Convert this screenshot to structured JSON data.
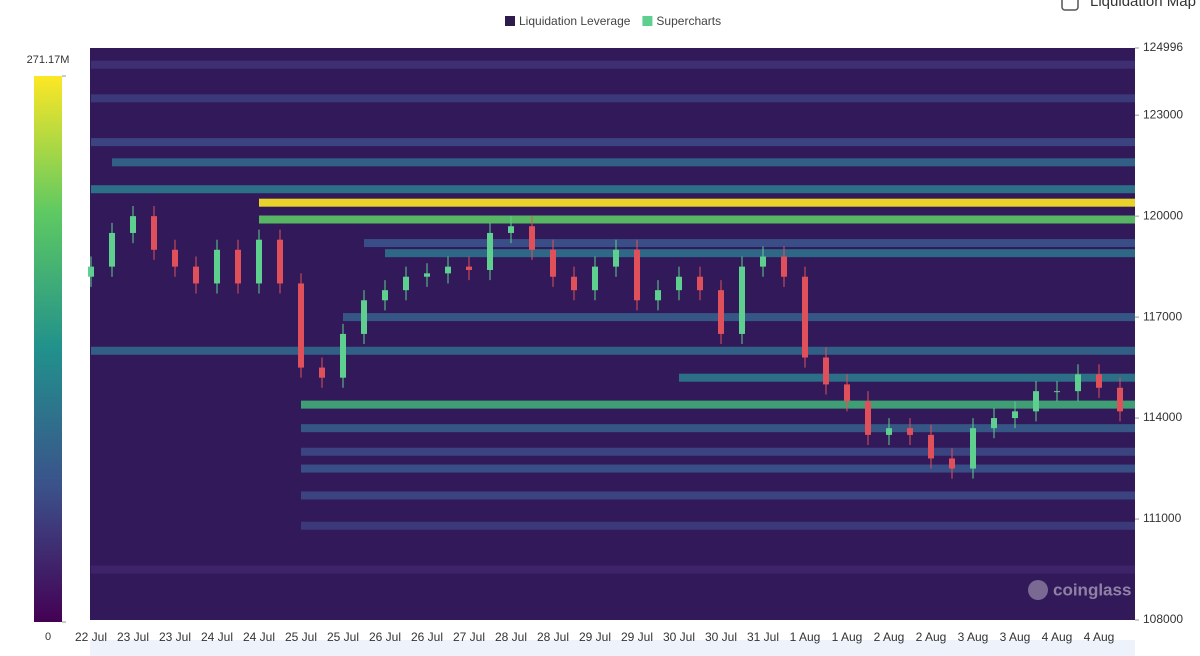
{
  "chart_data": {
    "type": "heatmap",
    "toggle_label": "Liquidation Map",
    "legend": [
      {
        "name": "Liquidation Leverage",
        "color": "#2d1b4e"
      },
      {
        "name": "Supercharts",
        "color": "#5fcf8f"
      }
    ],
    "categories": [
      "22 Jul",
      "23 Jul",
      "23 Jul",
      "24 Jul",
      "24 Jul",
      "25 Jul",
      "25 Jul",
      "26 Jul",
      "26 Jul",
      "27 Jul",
      "28 Jul",
      "28 Jul",
      "29 Jul",
      "29 Jul",
      "30 Jul",
      "30 Jul",
      "31 Jul",
      "1 Aug",
      "1 Aug",
      "2 Aug",
      "2 Aug",
      "3 Aug",
      "3 Aug",
      "4 Aug",
      "4 Aug"
    ],
    "ylim": [
      108000,
      124996
    ],
    "yticks": [
      108000,
      111000,
      114000,
      117000,
      120000,
      123000,
      124996
    ],
    "colorbar_lim": [
      0,
      271.17
    ],
    "colorbar_ticks": [
      0,
      {
        "value": 271.17,
        "label": "271.17M"
      }
    ],
    "bands": [
      {
        "price": 124500,
        "value": 40,
        "start": 0
      },
      {
        "price": 123500,
        "value": 50,
        "start": 0
      },
      {
        "price": 122200,
        "value": 60,
        "start": 0
      },
      {
        "price": 121600,
        "value": 90,
        "start": 1
      },
      {
        "price": 120800,
        "value": 110,
        "start": 0
      },
      {
        "price": 120400,
        "value": 271,
        "start": 8
      },
      {
        "price": 119900,
        "value": 200,
        "start": 8
      },
      {
        "price": 119200,
        "value": 70,
        "start": 13
      },
      {
        "price": 118900,
        "value": 100,
        "start": 14
      },
      {
        "price": 117000,
        "value": 80,
        "start": 12
      },
      {
        "price": 116000,
        "value": 90,
        "start": 0
      },
      {
        "price": 115200,
        "value": 110,
        "start": 28
      },
      {
        "price": 114400,
        "value": 170,
        "start": 10
      },
      {
        "price": 113700,
        "value": 80,
        "start": 10
      },
      {
        "price": 113000,
        "value": 60,
        "start": 10
      },
      {
        "price": 112500,
        "value": 70,
        "start": 10
      },
      {
        "price": 111700,
        "value": 60,
        "start": 10
      },
      {
        "price": 110800,
        "value": 50,
        "start": 10
      },
      {
        "price": 109500,
        "value": 30,
        "start": 0
      }
    ],
    "candles": {
      "open": [
        118200,
        118500,
        119500,
        120000,
        119000,
        118500,
        118000,
        119000,
        118000,
        119300,
        118000,
        115500,
        115200,
        116500,
        117500,
        117800,
        118200,
        118300,
        118500,
        118400,
        119500,
        119700,
        119000,
        118200,
        117800,
        118500,
        119000,
        117500,
        117800,
        118200,
        117800,
        116500,
        118500,
        118800,
        118200,
        115800,
        115000,
        114500,
        113500,
        113700,
        113500,
        112800,
        112500,
        113700,
        114000,
        114200,
        114800,
        114800,
        115300,
        114900
      ],
      "high": [
        118800,
        119800,
        120300,
        120300,
        119300,
        118800,
        119300,
        119300,
        119600,
        119600,
        118300,
        115800,
        116800,
        117800,
        118100,
        118500,
        118600,
        118800,
        118800,
        119800,
        120000,
        120000,
        119300,
        118500,
        118800,
        119300,
        119300,
        118100,
        118500,
        118500,
        118100,
        118800,
        119100,
        119100,
        118500,
        116100,
        115300,
        114800,
        114000,
        114000,
        113800,
        113100,
        114000,
        114300,
        114500,
        115100,
        115100,
        115600,
        115600,
        115200
      ],
      "low": [
        117900,
        118200,
        119200,
        118700,
        118200,
        117700,
        117700,
        117700,
        117700,
        117700,
        115200,
        114900,
        114900,
        116200,
        117200,
        117500,
        117900,
        118000,
        118100,
        118100,
        119200,
        118700,
        117900,
        117500,
        117500,
        118200,
        117200,
        117200,
        117500,
        117500,
        116200,
        116200,
        118200,
        117900,
        115500,
        114700,
        114200,
        113200,
        113200,
        113200,
        112500,
        112200,
        112200,
        113400,
        113700,
        113900,
        114500,
        114500,
        114600,
        113900
      ],
      "close": [
        118500,
        119500,
        120000,
        119000,
        118500,
        118000,
        119000,
        118000,
        119300,
        118000,
        115500,
        115200,
        116500,
        117500,
        117800,
        118200,
        118300,
        118500,
        118400,
        119500,
        119700,
        119000,
        118200,
        117800,
        118500,
        119000,
        117500,
        117800,
        118200,
        117800,
        116500,
        118500,
        118800,
        118200,
        115800,
        115000,
        114500,
        113500,
        113700,
        113500,
        112800,
        112500,
        113700,
        114000,
        114200,
        114800,
        114800,
        115300,
        114900,
        114200
      ]
    },
    "watermark": "coinglass"
  }
}
